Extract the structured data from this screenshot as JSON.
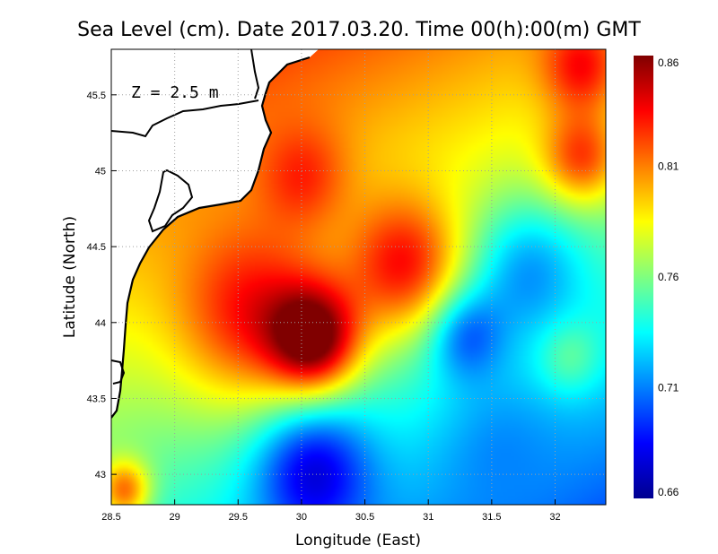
{
  "title": "Sea Level (cm). Date 2017.03.20. Time 00(h):00(m) GMT",
  "depth_label": "Z = 2.5 m",
  "xlabel": "Longitude (East)",
  "ylabel": "Latitude (North)",
  "chart_data": {
    "type": "heatmap",
    "title": "Sea Level (cm). Date 2017.03.20. Time 00(h):00(m) GMT",
    "xlabel": "Longitude (East)",
    "ylabel": "Latitude (North)",
    "xlim": [
      28.5,
      32.4
    ],
    "ylim": [
      42.8,
      45.8
    ],
    "x_ticks": [
      "28.5",
      "29",
      "29.5",
      "30",
      "30.5",
      "31",
      "31.5",
      "32"
    ],
    "x_tick_values": [
      28.5,
      29,
      29.5,
      30,
      30.5,
      31,
      31.5,
      32
    ],
    "y_ticks": [
      "43",
      "43.5",
      "44",
      "44.5",
      "45",
      "45.5"
    ],
    "y_tick_values": [
      43,
      43.5,
      44,
      44.5,
      45,
      45.5
    ],
    "grid": true,
    "colorbar": {
      "ticks": [
        "0.66",
        "0.71",
        "0.76",
        "0.81",
        "0.86"
      ],
      "tick_values": [
        0.66,
        0.71,
        0.76,
        0.81,
        0.86
      ],
      "range": [
        0.66,
        0.86
      ],
      "colormap": "jet"
    },
    "features": [
      {
        "lon": 30.1,
        "lat": 43.9,
        "value": 0.86,
        "extent": 0.35
      },
      {
        "lon": 29.6,
        "lat": 44.1,
        "value": 0.84,
        "extent": 0.6
      },
      {
        "lon": 30.8,
        "lat": 44.4,
        "value": 0.84,
        "extent": 0.45
      },
      {
        "lon": 30.0,
        "lat": 45.0,
        "value": 0.83,
        "extent": 0.35
      },
      {
        "lon": 32.2,
        "lat": 45.7,
        "value": 0.84,
        "extent": 0.3
      },
      {
        "lon": 32.2,
        "lat": 45.1,
        "value": 0.83,
        "extent": 0.3
      },
      {
        "lon": 31.8,
        "lat": 44.3,
        "value": 0.71,
        "extent": 0.45
      },
      {
        "lon": 31.3,
        "lat": 43.9,
        "value": 0.7,
        "extent": 0.3
      },
      {
        "lon": 30.1,
        "lat": 43.0,
        "value": 0.67,
        "extent": 0.45
      },
      {
        "lon": 31.6,
        "lat": 43.1,
        "value": 0.71,
        "extent": 0.5
      },
      {
        "lon": 32.1,
        "lat": 43.8,
        "value": 0.76,
        "extent": 0.25
      },
      {
        "lon": 28.6,
        "lat": 42.9,
        "value": 0.82,
        "extent": 0.2
      }
    ]
  },
  "colors": {
    "land": "#ffffff",
    "coastline": "#000000",
    "grid": "#a0a0a0"
  }
}
